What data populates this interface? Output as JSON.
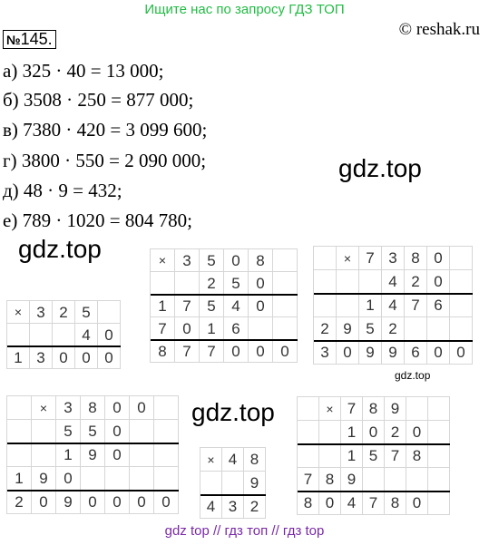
{
  "header": {
    "search_hint": "Ищите нас по запросу ГДЗ ТОП",
    "copyright": "© reshak.ru"
  },
  "task": {
    "number_sign": "№",
    "number": "145."
  },
  "answers": [
    "а) 325 · 40 = 13 000;",
    "б) 3508 · 250 = 877 000;",
    "в) 7380 · 420 = 3 099 600;",
    "г) 3800 · 550 = 2 090 000;",
    "д) 48 · 9 = 432;",
    "е) 789 · 1020 = 804 780;"
  ],
  "watermarks": {
    "big": "gdz.top",
    "small": "gdz.top"
  },
  "multiplications": [
    {
      "id": "a",
      "cols": 5,
      "cell_w": 25,
      "cell_h": 25,
      "rows": [
        [
          "×",
          "3",
          "2",
          "5",
          ""
        ],
        [
          "",
          "",
          "",
          "4",
          "0"
        ],
        [
          "1",
          "3",
          "0",
          "0",
          "0"
        ]
      ],
      "rules_after": [
        2
      ]
    },
    {
      "id": "b",
      "cols": 6,
      "cell_w": 27,
      "cell_h": 25,
      "rows": [
        [
          "×",
          "3",
          "5",
          "0",
          "8",
          ""
        ],
        [
          "",
          "",
          "2",
          "5",
          "0",
          ""
        ],
        [
          "1",
          "7",
          "5",
          "4",
          "0",
          ""
        ],
        [
          "7",
          "0",
          "1",
          "6",
          "",
          ""
        ],
        [
          "8",
          "7",
          "7",
          "0",
          "0",
          "0"
        ]
      ],
      "rules_after": [
        2,
        4
      ]
    },
    {
      "id": "v",
      "cols": 7,
      "cell_w": 25,
      "cell_h": 26,
      "rows": [
        [
          "",
          "×",
          "7",
          "3",
          "8",
          "0",
          ""
        ],
        [
          "",
          "",
          "",
          "4",
          "2",
          "0",
          ""
        ],
        [
          "",
          "",
          "1",
          "4",
          "7",
          "6",
          ""
        ],
        [
          "2",
          "9",
          "5",
          "2",
          "",
          "",
          ""
        ],
        [
          "3",
          "0",
          "9",
          "9",
          "6",
          "0",
          "0"
        ]
      ],
      "rules_after": [
        2,
        4
      ]
    },
    {
      "id": "g",
      "cols": 7,
      "cell_w": 27,
      "cell_h": 26,
      "rows": [
        [
          "",
          "×",
          "3",
          "8",
          "0",
          "0",
          ""
        ],
        [
          "",
          "",
          "5",
          "5",
          "0",
          "",
          ""
        ],
        [
          "",
          "",
          "1",
          "9",
          "0",
          "",
          ""
        ],
        [
          "1",
          "9",
          "0",
          "",
          "",
          "",
          ""
        ],
        [
          "2",
          "0",
          "9",
          "0",
          "0",
          "0",
          "0"
        ]
      ],
      "rules_after": [
        2,
        4
      ]
    },
    {
      "id": "d",
      "cols": 3,
      "cell_w": 24,
      "cell_h": 26,
      "rows": [
        [
          "×",
          "4",
          "8"
        ],
        [
          "",
          "",
          "9"
        ],
        [
          "4",
          "3",
          "2"
        ]
      ],
      "rules_after": [
        2
      ]
    },
    {
      "id": "e",
      "cols": 7,
      "cell_w": 24,
      "cell_h": 26,
      "rows": [
        [
          "",
          "×",
          "7",
          "8",
          "9",
          "",
          ""
        ],
        [
          "",
          "",
          "1",
          "0",
          "2",
          "0",
          ""
        ],
        [
          "",
          "",
          "1",
          "5",
          "7",
          "8",
          ""
        ],
        [
          "7",
          "8",
          "9",
          "",
          "",
          "",
          ""
        ],
        [
          "8",
          "0",
          "4",
          "7",
          "8",
          "0",
          ""
        ]
      ],
      "rules_after": [
        2,
        4
      ]
    }
  ],
  "footer": "gdz top  //  гдз топ  //  гдз top"
}
